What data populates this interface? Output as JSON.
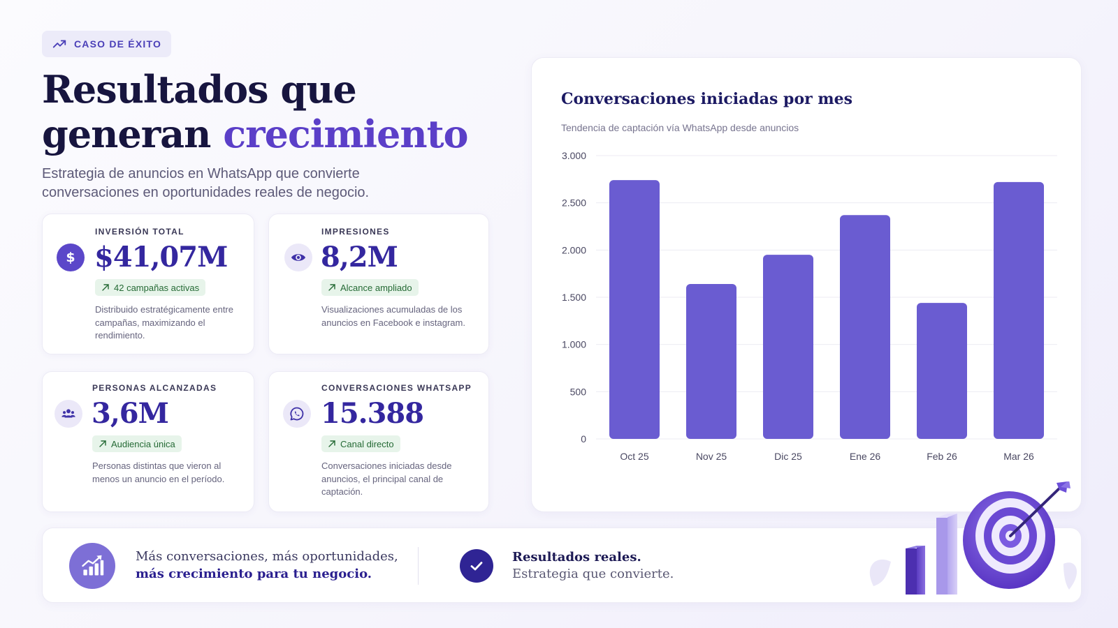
{
  "badge": {
    "label": "CASO DE ÉXITO",
    "icon": "trending-up-icon"
  },
  "header": {
    "title_line1": "Resultados que",
    "title_line2_plain": "generan",
    "title_line2_accent": "crecimiento",
    "subtitle": "Estrategia de anuncios en WhatsApp que convierte conversaciones en oportunidades reales de negocio."
  },
  "kpis": [
    {
      "label": "INVERSIÓN TOTAL",
      "value": "$41,07M",
      "pill": "42 campañas activas",
      "description": "Distribuido estratégicamente entre campañas, maximizando el rendimiento.",
      "icon": "dollar-icon"
    },
    {
      "label": "IMPRESIONES",
      "value": "8,2M",
      "pill": "Alcance ampliado",
      "description": "Visualizaciones acumuladas de los anuncios en Facebook e instagram.",
      "icon": "eye-icon"
    },
    {
      "label": "PERSONAS ALCANZADAS",
      "value": "3,6M",
      "pill": "Audiencia única",
      "description": "Personas distintas que vieron al menos un anuncio en el período.",
      "icon": "people-icon"
    },
    {
      "label": "CONVERSACIONES WHATSAPP",
      "value": "15.388",
      "pill": "Canal directo",
      "description": "Conversaciones iniciadas desde anuncios, el principal canal de captación.",
      "icon": "whatsapp-icon"
    }
  ],
  "chart_data": {
    "type": "bar",
    "title": "Conversaciones iniciadas por mes",
    "subtitle": "Tendencia de captación vía WhatsApp desde anuncios",
    "categories": [
      "Oct 25",
      "Nov 25",
      "Dic 25",
      "Ene 26",
      "Feb 26",
      "Mar 26"
    ],
    "values": [
      2740,
      1640,
      1950,
      2370,
      1440,
      2720
    ],
    "ylim": [
      0,
      3000
    ],
    "yticks": [
      0,
      500,
      1000,
      1500,
      2000,
      2500,
      3000
    ],
    "ytick_labels": [
      "0",
      "500",
      "1.000",
      "1.500",
      "2.000",
      "2.500",
      "3.000"
    ],
    "grid": true,
    "bar_color": "#6a5cd1"
  },
  "banner": {
    "text1": "Más conversaciones, más oportunidades,",
    "text1_strong": "más crecimiento para tu negocio.",
    "text2_strong": "Resultados reales.",
    "text2": "Estrategia que convierte.",
    "icon": "growth-chart-icon",
    "check_icon": "check-icon"
  },
  "colors": {
    "accent": "#5b3fc8",
    "navy": "#17153f",
    "pill_bg": "#e7f4ea",
    "pill_text": "#256a35"
  }
}
